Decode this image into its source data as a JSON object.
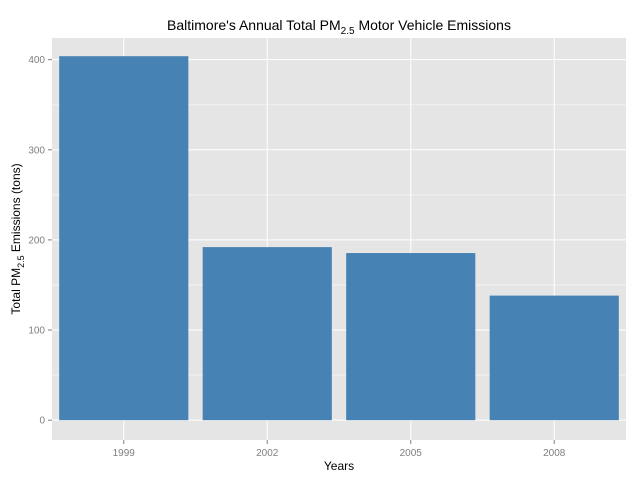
{
  "chart_data": {
    "type": "bar",
    "title": {
      "pre": "Baltimore's Annual Total PM",
      "sub": "2.5",
      "post": " Motor Vehicle Emissions"
    },
    "xlabel": "Years",
    "ylabel": {
      "pre": "Total PM",
      "sub": "2.5",
      "post": " Emissions (tons)"
    },
    "categories": [
      "1999",
      "2002",
      "2005",
      "2008"
    ],
    "values": [
      403.8,
      192.0,
      185.4,
      138.2
    ],
    "ylim": [
      -22,
      424
    ],
    "yticks": [
      0,
      100,
      200,
      300,
      400
    ],
    "ytick_labels": [
      "0",
      "100",
      "200",
      "300",
      "400"
    ],
    "minor_yticks": [
      50,
      150,
      250,
      350
    ],
    "grid": true,
    "legend": "none",
    "colors": {
      "bar": "#4682B4",
      "panel": "#E5E5E5",
      "grid_major": "#FFFFFF",
      "grid_minor": "#F2F2F2",
      "tick_text": "#7F7F7F",
      "text": "#000000"
    }
  }
}
